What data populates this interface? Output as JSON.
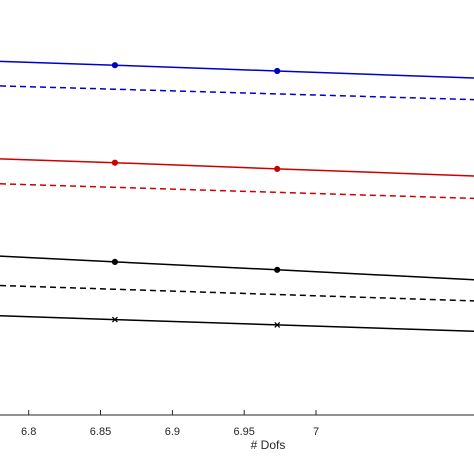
{
  "chart_data": {
    "type": "line",
    "title": "",
    "xlabel": "# Dofs",
    "ylabel": "",
    "xlim": [
      6.78,
      7.11
    ],
    "ylim": [
      0,
      1
    ],
    "x_ticks": [
      6.8,
      6.85,
      6.9,
      6.95,
      7.0
    ],
    "x_tick_labels": [
      "6.8",
      "6.85",
      "6.9",
      "6.95",
      "7"
    ],
    "grid": false,
    "series": [
      {
        "color": "#0000cc",
        "style": "solid",
        "marker": "circle",
        "x": [
          6.78,
          6.86,
          6.973,
          7.11
        ],
        "y": [
          0.852,
          0.843,
          0.829,
          0.812
        ],
        "marker_x": [
          6.86,
          6.973
        ]
      },
      {
        "color": "#0000cc",
        "style": "dashed",
        "marker": "none",
        "x": [
          6.78,
          7.11
        ],
        "y": [
          0.793,
          0.76
        ]
      },
      {
        "color": "#cc0000",
        "style": "solid",
        "marker": "circle",
        "x": [
          6.78,
          6.86,
          6.973,
          7.11
        ],
        "y": [
          0.617,
          0.608,
          0.593,
          0.576
        ]
      },
      {
        "color": "#cc0000",
        "style": "dashed",
        "marker": "none",
        "x": [
          6.78,
          7.11
        ],
        "y": [
          0.557,
          0.522
        ]
      },
      {
        "color": "#000000",
        "style": "solid",
        "marker": "circle",
        "x": [
          6.78,
          6.86,
          6.973,
          7.11
        ],
        "y": [
          0.383,
          0.369,
          0.35,
          0.326
        ]
      },
      {
        "color": "#000000",
        "style": "dashed",
        "marker": "none",
        "x": [
          6.78,
          7.11
        ],
        "y": [
          0.312,
          0.275
        ]
      },
      {
        "color": "#000000",
        "style": "solid",
        "marker": "x",
        "x": [
          6.78,
          6.86,
          6.973,
          7.11
        ],
        "y": [
          0.239,
          0.23,
          0.217,
          0.202
        ]
      }
    ]
  }
}
